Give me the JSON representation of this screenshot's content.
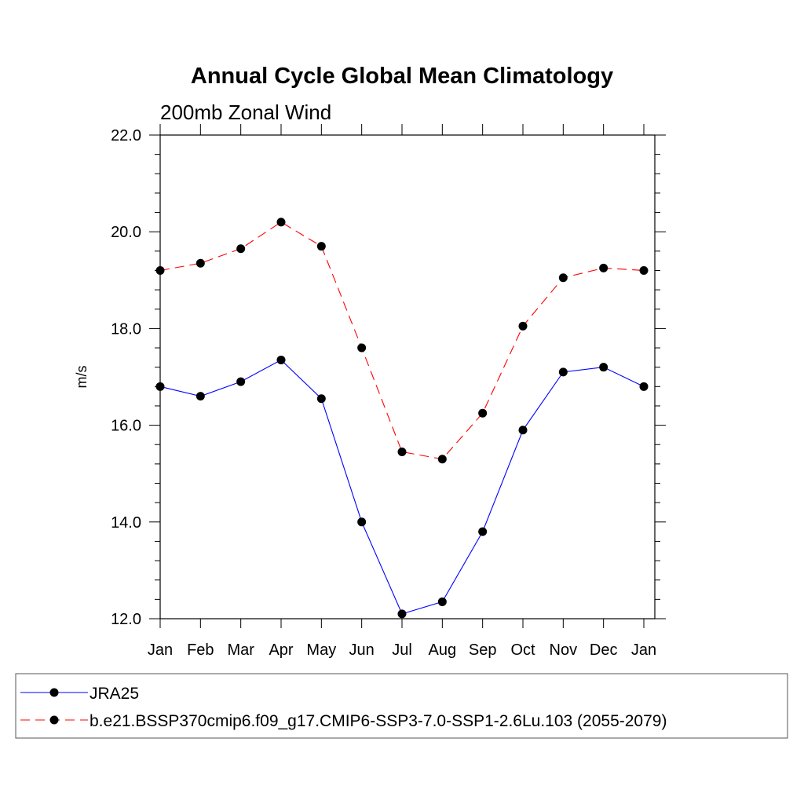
{
  "chart_data": {
    "type": "line",
    "title": "Annual Cycle Global Mean Climatology",
    "subtitle": "200mb Zonal Wind",
    "ylabel": "m/s",
    "xlabel": "",
    "ylim": [
      12.0,
      22.0
    ],
    "yticks": [
      "12.0",
      "14.0",
      "16.0",
      "18.0",
      "20.0",
      "22.0"
    ],
    "categories": [
      "Jan",
      "Feb",
      "Mar",
      "Apr",
      "May",
      "Jun",
      "Jul",
      "Aug",
      "Sep",
      "Oct",
      "Nov",
      "Dec",
      "Jan"
    ],
    "grid": false,
    "legend_position": "bottom",
    "series": [
      {
        "name": "JRA25",
        "color": "#0000ff",
        "style": "solid",
        "values": [
          16.8,
          16.6,
          16.9,
          17.35,
          16.55,
          14.0,
          12.1,
          12.35,
          13.8,
          15.9,
          17.1,
          17.2,
          16.8
        ]
      },
      {
        "name": "b.e21.BSSP370cmip6.f09_g17.CMIP6-SSP3-7.0-SSP1-2.6Lu.103 (2055-2079)",
        "color": "#ff0000",
        "style": "dashed",
        "values": [
          19.2,
          19.35,
          19.65,
          20.2,
          19.7,
          17.6,
          15.45,
          15.3,
          16.25,
          18.05,
          19.05,
          19.25,
          19.2
        ]
      }
    ]
  }
}
